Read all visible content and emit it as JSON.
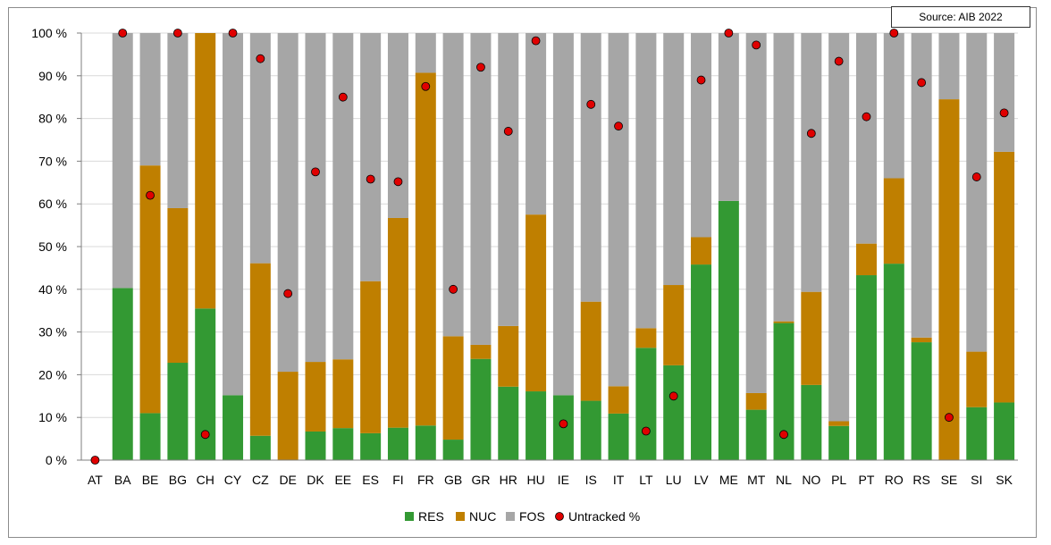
{
  "source_note": "Source: AIB 2022",
  "colors": {
    "RES": "#339933",
    "NUC": "#bf7f00",
    "FOS": "#a6a6a6",
    "untracked": "#e00000",
    "grid": "#d9d9d9",
    "axis": "#7f7f7f"
  },
  "chart_data": {
    "type": "bar",
    "stacked": true,
    "title": "",
    "xlabel": "",
    "ylabel": "",
    "ylim": [
      0,
      100
    ],
    "yticks": [
      "0 %",
      "10 %",
      "20 %",
      "30 %",
      "40 %",
      "50 %",
      "60 %",
      "70 %",
      "80 %",
      "90 %",
      "100 %"
    ],
    "grid": true,
    "legend_position": "bottom",
    "categories": [
      "AT",
      "BA",
      "BE",
      "BG",
      "CH",
      "CY",
      "CZ",
      "DE",
      "DK",
      "EE",
      "ES",
      "FI",
      "FR",
      "GB",
      "GR",
      "HR",
      "HU",
      "IE",
      "IS",
      "IT",
      "LT",
      "LU",
      "LV",
      "ME",
      "MT",
      "NL",
      "NO",
      "PL",
      "PT",
      "RO",
      "RS",
      "SE",
      "SI",
      "SK"
    ],
    "series": [
      {
        "name": "RES",
        "type": "bar",
        "values": [
          0,
          40.3,
          11,
          22.8,
          35.5,
          15.2,
          5.7,
          0,
          6.7,
          7.5,
          6.3,
          7.6,
          8.1,
          4.8,
          23.7,
          17.2,
          16.1,
          15.2,
          13.9,
          10.9,
          26.3,
          22.2,
          45.8,
          60.7,
          11.8,
          32.1,
          17.6,
          8,
          43.3,
          46,
          27.6,
          0,
          12.4,
          13.5
        ]
      },
      {
        "name": "NUC",
        "type": "bar",
        "values": [
          0,
          0,
          58,
          36.2,
          64.5,
          0,
          40.4,
          20.7,
          16.3,
          16.1,
          35.6,
          49.1,
          82.6,
          24.2,
          3.3,
          14.2,
          41.4,
          0,
          23.2,
          6.4,
          4.6,
          18.8,
          6.4,
          0,
          3.9,
          0.4,
          21.8,
          1.1,
          7.4,
          20,
          1.1,
          84.5,
          13,
          58.7
        ]
      },
      {
        "name": "FOS",
        "type": "bar",
        "values": [
          0,
          59.7,
          31,
          41,
          0,
          84.8,
          53.9,
          79.3,
          77,
          76.4,
          58.1,
          43.3,
          9.3,
          71,
          73,
          68.6,
          42.5,
          84.8,
          62.9,
          82.7,
          69.1,
          59,
          47.8,
          39.3,
          84.3,
          67.5,
          60.6,
          90.9,
          49.3,
          34,
          71.3,
          15.5,
          74.6,
          27.8
        ]
      },
      {
        "name": "Untracked %",
        "type": "scatter",
        "values": [
          0,
          100,
          62,
          100,
          6,
          100,
          94,
          39,
          67.5,
          85,
          65.8,
          65.2,
          87.5,
          40,
          92,
          77,
          98.2,
          8.5,
          83.3,
          78.2,
          6.8,
          15,
          89,
          100,
          97.2,
          6,
          76.5,
          93.4,
          80.4,
          100,
          88.4,
          10,
          66.3,
          81.3
        ]
      }
    ]
  }
}
